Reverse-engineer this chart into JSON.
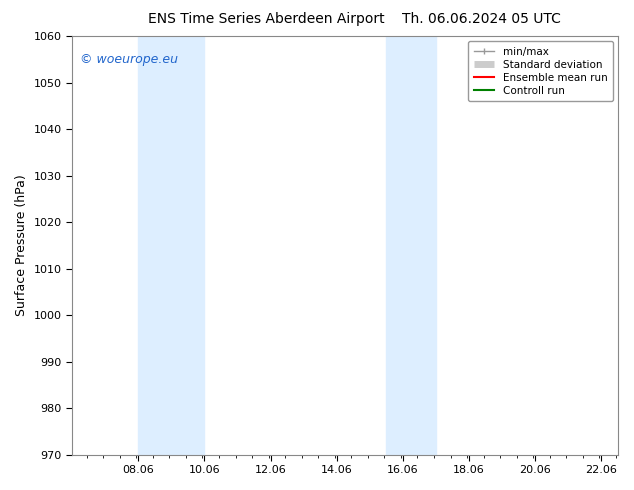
{
  "title_left": "ENS Time Series Aberdeen Airport",
  "title_right": "Th. 06.06.2024 05 UTC",
  "ylabel": "Surface Pressure (hPa)",
  "ylim": [
    970,
    1060
  ],
  "yticks": [
    970,
    980,
    990,
    1000,
    1010,
    1020,
    1030,
    1040,
    1050,
    1060
  ],
  "xlim_start": 6.06,
  "xlim_end": 22.56,
  "xticks": [
    8.06,
    10.06,
    12.06,
    14.06,
    16.06,
    18.06,
    20.06,
    22.06
  ],
  "xtick_labels": [
    "08.06",
    "10.06",
    "12.06",
    "14.06",
    "16.06",
    "18.06",
    "20.06",
    "22.06"
  ],
  "shaded_bands": [
    {
      "x_start": 8.06,
      "x_end": 10.06
    },
    {
      "x_start": 15.56,
      "x_end": 17.06
    }
  ],
  "shade_color": "#ddeeff",
  "bg_color": "#ffffff",
  "plot_bg_color": "#ffffff",
  "watermark": "© woeurope.eu",
  "watermark_color": "#2266cc",
  "legend_items": [
    {
      "label": "min/max",
      "color": "#999999",
      "lw": 1.0
    },
    {
      "label": "Standard deviation",
      "color": "#cccccc",
      "lw": 5
    },
    {
      "label": "Ensemble mean run",
      "color": "#ff0000",
      "lw": 1.5
    },
    {
      "label": "Controll run",
      "color": "#008000",
      "lw": 1.5
    }
  ],
  "title_fontsize": 10,
  "tick_fontsize": 8,
  "ylabel_fontsize": 9,
  "watermark_fontsize": 9
}
